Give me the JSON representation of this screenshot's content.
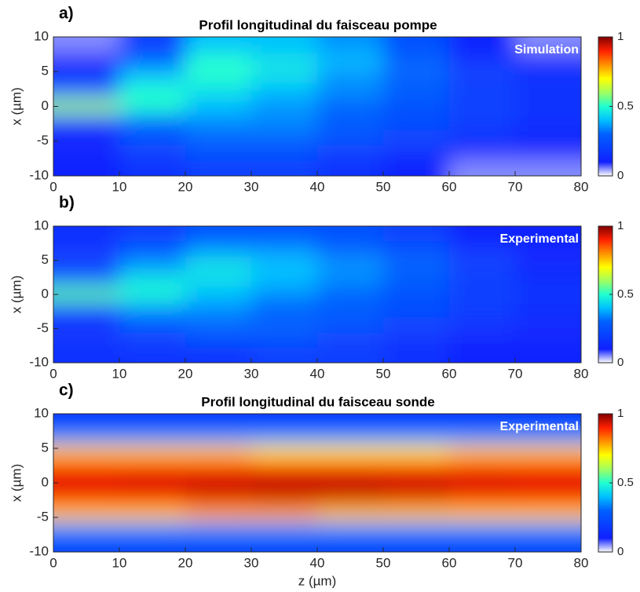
{
  "chart_data": [
    {
      "type": "heatmap",
      "panel_label": "a)",
      "title": "Profil longitudinal du faisceau pompe",
      "overlay_label": "Simulation",
      "ylabel": "x (µm)",
      "colormap": "jet-white",
      "x": [
        5,
        15,
        25,
        35,
        45,
        55,
        65,
        75
      ],
      "y": [
        -8.9,
        -6.7,
        -4.4,
        -2.2,
        0,
        2.2,
        4.4,
        6.7,
        8.9
      ],
      "values": [
        [
          0.1,
          0.15,
          0.2,
          0.2,
          0.15,
          0.1,
          0.05,
          0.05
        ],
        [
          0.1,
          0.2,
          0.25,
          0.25,
          0.2,
          0.15,
          0.1,
          0.1
        ],
        [
          0.1,
          0.25,
          0.3,
          0.3,
          0.25,
          0.2,
          0.15,
          0.1
        ],
        [
          0.15,
          0.3,
          0.35,
          0.35,
          0.3,
          0.25,
          0.2,
          0.15
        ],
        [
          0.6,
          0.5,
          0.4,
          0.35,
          0.3,
          0.25,
          0.2,
          0.15
        ],
        [
          0.3,
          0.5,
          0.45,
          0.4,
          0.35,
          0.3,
          0.2,
          0.15
        ],
        [
          0.15,
          0.4,
          0.5,
          0.45,
          0.35,
          0.3,
          0.2,
          0.15
        ],
        [
          0.1,
          0.3,
          0.5,
          0.45,
          0.4,
          0.3,
          0.15,
          0.1
        ],
        [
          0.05,
          0.2,
          0.4,
          0.4,
          0.35,
          0.25,
          0.1,
          0.05
        ]
      ],
      "xlim": [
        0,
        80
      ],
      "ylim": [
        -10,
        10
      ],
      "xticks": [
        0,
        10,
        20,
        30,
        40,
        50,
        60,
        70,
        80
      ],
      "yticks": [
        -10,
        -5,
        0,
        5,
        10
      ],
      "clim": [
        0,
        1
      ],
      "cticks": [
        0,
        0.5,
        1
      ]
    },
    {
      "type": "heatmap",
      "panel_label": "b)",
      "overlay_label": "Experimental",
      "ylabel": "x (µm)",
      "colormap": "jet-white",
      "x": [
        5,
        15,
        25,
        35,
        45,
        55,
        65,
        75
      ],
      "y": [
        -8.9,
        -6.7,
        -4.4,
        -2.2,
        0,
        2.2,
        4.4,
        6.7,
        8.9
      ],
      "values": [
        [
          0.15,
          0.15,
          0.15,
          0.2,
          0.2,
          0.15,
          0.1,
          0.1
        ],
        [
          0.15,
          0.2,
          0.25,
          0.25,
          0.2,
          0.15,
          0.1,
          0.1
        ],
        [
          0.15,
          0.25,
          0.3,
          0.3,
          0.25,
          0.2,
          0.15,
          0.1
        ],
        [
          0.2,
          0.35,
          0.35,
          0.3,
          0.3,
          0.25,
          0.2,
          0.15
        ],
        [
          0.55,
          0.5,
          0.4,
          0.35,
          0.3,
          0.25,
          0.2,
          0.15
        ],
        [
          0.3,
          0.45,
          0.45,
          0.4,
          0.35,
          0.3,
          0.2,
          0.15
        ],
        [
          0.2,
          0.35,
          0.45,
          0.4,
          0.35,
          0.3,
          0.2,
          0.1
        ],
        [
          0.15,
          0.25,
          0.35,
          0.35,
          0.3,
          0.25,
          0.15,
          0.1
        ],
        [
          0.15,
          0.2,
          0.25,
          0.25,
          0.25,
          0.2,
          0.1,
          0.1
        ]
      ],
      "xlim": [
        0,
        80
      ],
      "ylim": [
        -10,
        10
      ],
      "xticks": [
        0,
        10,
        20,
        30,
        40,
        50,
        60,
        70,
        80
      ],
      "yticks": [
        -10,
        -5,
        0,
        5,
        10
      ],
      "clim": [
        0,
        1
      ],
      "cticks": [
        0,
        0.5,
        1
      ]
    },
    {
      "type": "heatmap",
      "panel_label": "c)",
      "title": "Profil longitudinal du faisceau sonde",
      "overlay_label": "Experimental",
      "xlabel": "z (µm)",
      "ylabel": "x (µm)",
      "colormap": "jet-white",
      "x": [
        5,
        15,
        25,
        35,
        45,
        55,
        65,
        75
      ],
      "y": [
        -8.9,
        -6.7,
        -4.4,
        -2.2,
        0,
        2.2,
        4.4,
        6.7,
        8.9
      ],
      "values": [
        [
          0.2,
          0.2,
          0.2,
          0.2,
          0.2,
          0.2,
          0.2,
          0.2
        ],
        [
          0.35,
          0.35,
          0.35,
          0.35,
          0.35,
          0.35,
          0.35,
          0.35
        ],
        [
          0.75,
          0.75,
          0.78,
          0.78,
          0.75,
          0.75,
          0.75,
          0.75
        ],
        [
          0.9,
          0.9,
          0.92,
          0.93,
          0.93,
          0.92,
          0.9,
          0.9
        ],
        [
          0.93,
          0.94,
          0.95,
          0.96,
          0.96,
          0.95,
          0.94,
          0.93
        ],
        [
          0.9,
          0.9,
          0.9,
          0.9,
          0.9,
          0.9,
          0.9,
          0.9
        ],
        [
          0.75,
          0.75,
          0.75,
          0.72,
          0.72,
          0.72,
          0.75,
          0.75
        ],
        [
          0.35,
          0.35,
          0.35,
          0.35,
          0.35,
          0.35,
          0.35,
          0.35
        ],
        [
          0.15,
          0.15,
          0.15,
          0.15,
          0.15,
          0.15,
          0.15,
          0.15
        ]
      ],
      "xlim": [
        0,
        80
      ],
      "ylim": [
        -10,
        10
      ],
      "xticks": [
        0,
        10,
        20,
        30,
        40,
        50,
        60,
        70,
        80
      ],
      "yticks": [
        -10,
        -5,
        0,
        5,
        10
      ],
      "clim": [
        0,
        1
      ],
      "cticks": [
        0,
        0.5,
        1
      ]
    }
  ]
}
